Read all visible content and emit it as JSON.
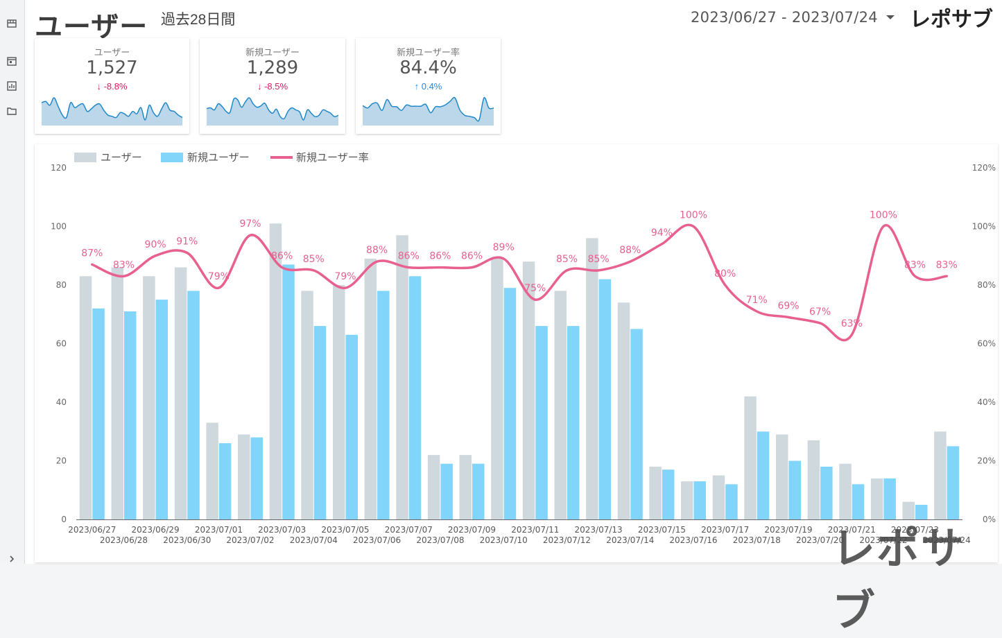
{
  "sidebar": {
    "items": [
      {
        "name": "store-icon"
      },
      {
        "name": "calendar-icon"
      },
      {
        "name": "chart-icon"
      },
      {
        "name": "folder-icon"
      },
      {
        "name": "chevron-right-icon"
      }
    ]
  },
  "header": {
    "title": "ユーザー",
    "period": "過去28日間",
    "date_range": "2023/06/27 - 2023/07/24",
    "logo": "レポサブ"
  },
  "scorecards": [
    {
      "label": "ユーザー",
      "value": "1,527",
      "delta": "-8.8%",
      "direction": "down",
      "spark": [
        90,
        91,
        88,
        94,
        87,
        80,
        78,
        90,
        86,
        88,
        89,
        83,
        85,
        88,
        89,
        84,
        80,
        79,
        78,
        82,
        81,
        79,
        83,
        81,
        86,
        76,
        88,
        82,
        79,
        85,
        90,
        84,
        83,
        80,
        78
      ]
    },
    {
      "label": "新規ユーザー",
      "value": "1,289",
      "delta": "-8.5%",
      "direction": "down",
      "spark": [
        72,
        73,
        70,
        79,
        75,
        68,
        66,
        86,
        85,
        74,
        82,
        88,
        79,
        74,
        76,
        80,
        70,
        65,
        71,
        60,
        57,
        68,
        73,
        70,
        67,
        55,
        70,
        65,
        60,
        62,
        70,
        68,
        65,
        60,
        62
      ]
    },
    {
      "label": "新規ユーザー率",
      "value": "84.4%",
      "delta": "0.4%",
      "direction": "up",
      "spark": [
        87,
        83,
        90,
        91,
        79,
        97,
        86,
        85,
        79,
        88,
        86,
        86,
        86,
        89,
        75,
        85,
        85,
        88,
        94,
        100,
        80,
        71,
        69,
        67,
        63,
        100,
        83,
        83
      ]
    }
  ],
  "chart_data": {
    "type": "bar",
    "legend": [
      "ユーザー",
      "新規ユーザー",
      "新規ユーザー率"
    ],
    "legend_position": "top-left",
    "categories": [
      "2023/06/27",
      "2023/06/28",
      "2023/06/29",
      "2023/06/30",
      "2023/07/01",
      "2023/07/02",
      "2023/07/03",
      "2023/07/04",
      "2023/07/05",
      "2023/07/06",
      "2023/07/07",
      "2023/07/08",
      "2023/07/09",
      "2023/07/10",
      "2023/07/11",
      "2023/07/12",
      "2023/07/13",
      "2023/07/14",
      "2023/07/15",
      "2023/07/16",
      "2023/07/17",
      "2023/07/18",
      "2023/07/19",
      "2023/07/20",
      "2023/07/21",
      "2023/07/22",
      "2023/07/23",
      "2023/07/24"
    ],
    "series": [
      {
        "name": "ユーザー",
        "type": "bar",
        "color": "#cfd8dc",
        "values": [
          83,
          86,
          83,
          86,
          33,
          29,
          101,
          78,
          80,
          89,
          97,
          22,
          22,
          89,
          88,
          78,
          96,
          74,
          18,
          13,
          15,
          42,
          29,
          27,
          19,
          14,
          6,
          30
        ]
      },
      {
        "name": "新規ユーザー",
        "type": "bar",
        "color": "#81d4fa",
        "values": [
          72,
          71,
          75,
          78,
          26,
          28,
          87,
          66,
          63,
          78,
          83,
          19,
          19,
          79,
          66,
          66,
          82,
          65,
          17,
          13,
          12,
          30,
          20,
          18,
          12,
          14,
          5,
          25
        ]
      },
      {
        "name": "新規ユーザー率",
        "type": "line",
        "axis": "right",
        "color": "#e8608f",
        "values": [
          87,
          83,
          90,
          91,
          79,
          97,
          86,
          85,
          79,
          88,
          86,
          86,
          86,
          89,
          75,
          85,
          85,
          88,
          94,
          100,
          80,
          71,
          69,
          67,
          63,
          100,
          83,
          83
        ],
        "labels": [
          "87%",
          "83%",
          "90%",
          "91%",
          "79%",
          "97%",
          "86%",
          "85%",
          "79%",
          "88%",
          "86%",
          "86%",
          "86%",
          "89%",
          "75%",
          "85%",
          "85%",
          "88%",
          "94%",
          "100%",
          "80%",
          "71%",
          "69%",
          "67%",
          "63%",
          "100%",
          "83%",
          "83%"
        ]
      }
    ],
    "y_left": {
      "min": 0,
      "max": 120,
      "ticks": [
        "0",
        "20",
        "40",
        "60",
        "80",
        "100",
        "120"
      ]
    },
    "y_right": {
      "min": 0,
      "max": 120,
      "ticks": [
        "0%",
        "20%",
        "40%",
        "60%",
        "80%",
        "100%",
        "120%"
      ]
    },
    "grid": false
  },
  "colors": {
    "users": "#cfd8dc",
    "new_users": "#81d4fa",
    "rate": "#e8608f",
    "spark": "#1e88c8"
  }
}
